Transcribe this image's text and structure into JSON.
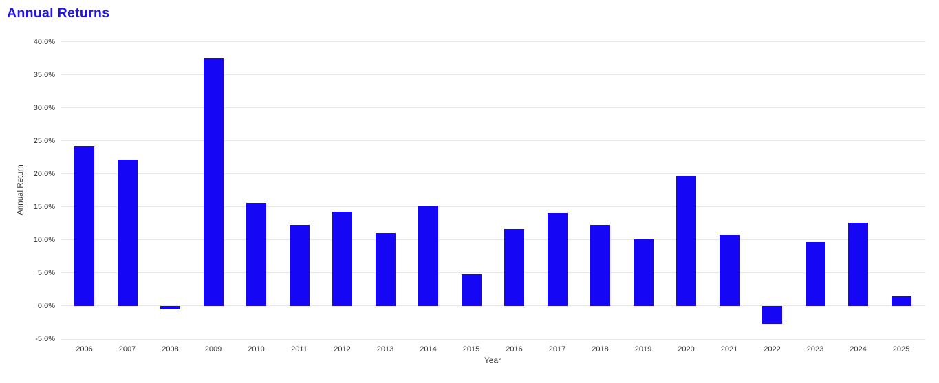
{
  "header": {
    "title": "Annual Returns",
    "title_color": "#2214E8"
  },
  "chart_data": {
    "type": "bar",
    "title": "Annual Returns",
    "xlabel": "Year",
    "ylabel": "Annual Return",
    "categories": [
      "2006",
      "2007",
      "2008",
      "2009",
      "2010",
      "2011",
      "2012",
      "2013",
      "2014",
      "2015",
      "2016",
      "2017",
      "2018",
      "2019",
      "2020",
      "2021",
      "2022",
      "2023",
      "2024",
      "2025"
    ],
    "values": [
      24.1,
      22.2,
      -0.5,
      37.4,
      15.6,
      12.3,
      14.2,
      11.0,
      15.2,
      4.8,
      11.6,
      14.0,
      12.3,
      10.1,
      19.7,
      10.7,
      -2.7,
      9.7,
      12.6,
      1.5
    ],
    "unit": "%",
    "ylim": [
      -5,
      40
    ],
    "ytick_values": [
      40,
      35,
      30,
      25,
      20,
      15,
      10,
      5,
      0,
      -5
    ],
    "ytick_labels": [
      "40.0%",
      "35.0%",
      "30.0%",
      "25.0%",
      "20.0%",
      "15.0%",
      "10.0%",
      "5.0%",
      "0.0%",
      "-5.0%"
    ],
    "grid": true,
    "legend": false,
    "bar_color": "#1506F6",
    "grid_color": "#E7E7E7",
    "tick_color": "#333333"
  }
}
